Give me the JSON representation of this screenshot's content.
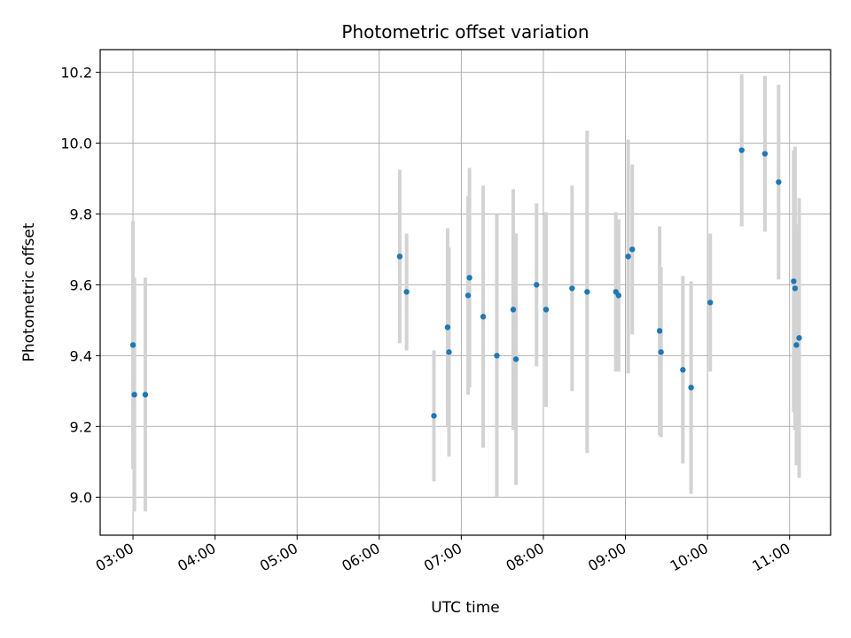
{
  "chart_data": {
    "type": "scatter",
    "title": "Photometric offset variation",
    "xlabel": "UTC time",
    "ylabel": "Photometric offset",
    "xlim": [
      "02:36",
      "11:30"
    ],
    "ylim": [
      8.893,
      10.264
    ],
    "grid": true,
    "x_ticks": [
      "03:00",
      "04:00",
      "05:00",
      "06:00",
      "07:00",
      "08:00",
      "09:00",
      "10:00",
      "11:00"
    ],
    "y_ticks": [
      9.0,
      9.2,
      9.4,
      9.6,
      9.8,
      10.0,
      10.2
    ],
    "y_tick_labels": [
      "9.0",
      "9.2",
      "9.4",
      "9.6",
      "9.8",
      "10.0",
      "10.2"
    ],
    "point_color": "#1f77b4",
    "errorbar_color": "#d3d3d3",
    "series": [
      {
        "points": [
          {
            "x": "03:00",
            "y": 9.43,
            "yerr": 0.35
          },
          {
            "x": "03:01",
            "y": 9.29,
            "yerr": 0.33
          },
          {
            "x": "03:09",
            "y": 9.29,
            "yerr": 0.33
          },
          {
            "x": "06:15",
            "y": 9.68,
            "yerr": 0.245
          },
          {
            "x": "06:20",
            "y": 9.58,
            "yerr": 0.165
          },
          {
            "x": "06:40",
            "y": 9.23,
            "yerr": 0.185
          },
          {
            "x": "06:50",
            "y": 9.48,
            "yerr": 0.28
          },
          {
            "x": "06:51",
            "y": 9.41,
            "yerr": 0.295
          },
          {
            "x": "07:05",
            "y": 9.57,
            "yerr": 0.28
          },
          {
            "x": "07:06",
            "y": 9.62,
            "yerr": 0.31
          },
          {
            "x": "07:16",
            "y": 9.51,
            "yerr": 0.37
          },
          {
            "x": "07:26",
            "y": 9.4,
            "yerr": 0.4
          },
          {
            "x": "07:38",
            "y": 9.53,
            "yerr": 0.34
          },
          {
            "x": "07:40",
            "y": 9.39,
            "yerr": 0.355
          },
          {
            "x": "07:55",
            "y": 9.6,
            "yerr": 0.23
          },
          {
            "x": "08:02",
            "y": 9.53,
            "yerr": 0.275
          },
          {
            "x": "08:21",
            "y": 9.59,
            "yerr": 0.29
          },
          {
            "x": "08:32",
            "y": 9.58,
            "yerr": 0.455
          },
          {
            "x": "08:53",
            "y": 9.58,
            "yerr": 0.225
          },
          {
            "x": "08:55",
            "y": 9.57,
            "yerr": 0.215
          },
          {
            "x": "09:02",
            "y": 9.68,
            "yerr": 0.33
          },
          {
            "x": "09:05",
            "y": 9.7,
            "yerr": 0.24
          },
          {
            "x": "09:25",
            "y": 9.47,
            "yerr": 0.295
          },
          {
            "x": "09:26",
            "y": 9.41,
            "yerr": 0.24
          },
          {
            "x": "09:42",
            "y": 9.36,
            "yerr": 0.265
          },
          {
            "x": "09:48",
            "y": 9.31,
            "yerr": 0.3
          },
          {
            "x": "10:02",
            "y": 9.55,
            "yerr": 0.195
          },
          {
            "x": "10:25",
            "y": 9.98,
            "yerr": 0.215
          },
          {
            "x": "10:42",
            "y": 9.97,
            "yerr": 0.22
          },
          {
            "x": "10:52",
            "y": 9.89,
            "yerr": 0.275
          },
          {
            "x": "11:03",
            "y": 9.61,
            "yerr": 0.37
          },
          {
            "x": "11:04",
            "y": 9.59,
            "yerr": 0.4
          },
          {
            "x": "11:05",
            "y": 9.43,
            "yerr": 0.34
          },
          {
            "x": "11:07",
            "y": 9.45,
            "yerr": 0.395
          }
        ]
      }
    ]
  }
}
